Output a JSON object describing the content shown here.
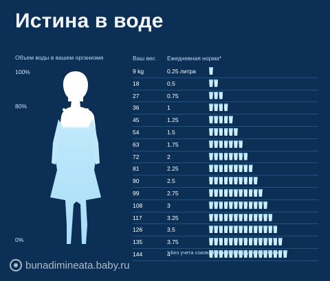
{
  "title": "Истина в воде",
  "left": {
    "heading": "Объем воды в вашем организме",
    "pct_100": "100%",
    "pct_80": "80%",
    "pct_0": "0%"
  },
  "table": {
    "col_weight": "Ваш вес",
    "col_norm": "Ежедневная норма*",
    "rows": [
      {
        "weight": "9 kg",
        "norm": "0.25 литра",
        "glasses": 1
      },
      {
        "weight": "18",
        "norm": "0.5",
        "glasses": 2
      },
      {
        "weight": "27",
        "norm": "0.75",
        "glasses": 3
      },
      {
        "weight": "36",
        "norm": "1",
        "glasses": 4
      },
      {
        "weight": "45",
        "norm": "1.25",
        "glasses": 5
      },
      {
        "weight": "54",
        "norm": "1.5",
        "glasses": 6
      },
      {
        "weight": "63",
        "norm": "1.75",
        "glasses": 7
      },
      {
        "weight": "72",
        "norm": "2",
        "glasses": 8
      },
      {
        "weight": "81",
        "norm": "2.25",
        "glasses": 9
      },
      {
        "weight": "90",
        "norm": "2.5",
        "glasses": 10
      },
      {
        "weight": "99",
        "norm": "2.75",
        "glasses": 11
      },
      {
        "weight": "108",
        "norm": "3",
        "glasses": 12
      },
      {
        "weight": "117",
        "norm": "3.25",
        "glasses": 13
      },
      {
        "weight": "126",
        "norm": "3.5",
        "glasses": 14
      },
      {
        "weight": "135",
        "norm": "3.75",
        "glasses": 15
      },
      {
        "weight": "144",
        "norm": "4",
        "glasses": 16
      }
    ],
    "footnote": "* Без учета соков, чая, кофе и других напитков"
  },
  "watermark": "bunadimineata.baby.ru",
  "colors": {
    "background": "#0b2f55",
    "water": "#cdeefc",
    "figure_fill": "#bfe8fb"
  }
}
